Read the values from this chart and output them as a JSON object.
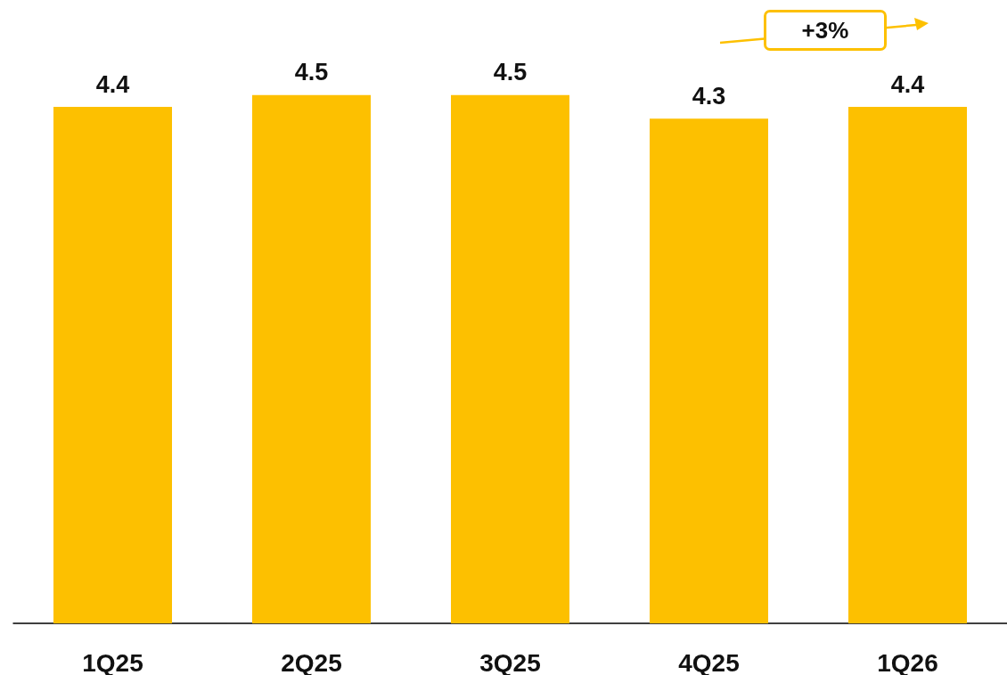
{
  "chart_data": {
    "type": "bar",
    "categories": [
      "1Q25",
      "2Q25",
      "3Q25",
      "4Q25",
      "1Q26"
    ],
    "values": [
      4.4,
      4.5,
      4.5,
      4.3,
      4.4
    ],
    "color": "#fdc000",
    "ylim": [
      0,
      5.25
    ],
    "data_labels": true,
    "annotations": [
      "+3%"
    ]
  }
}
